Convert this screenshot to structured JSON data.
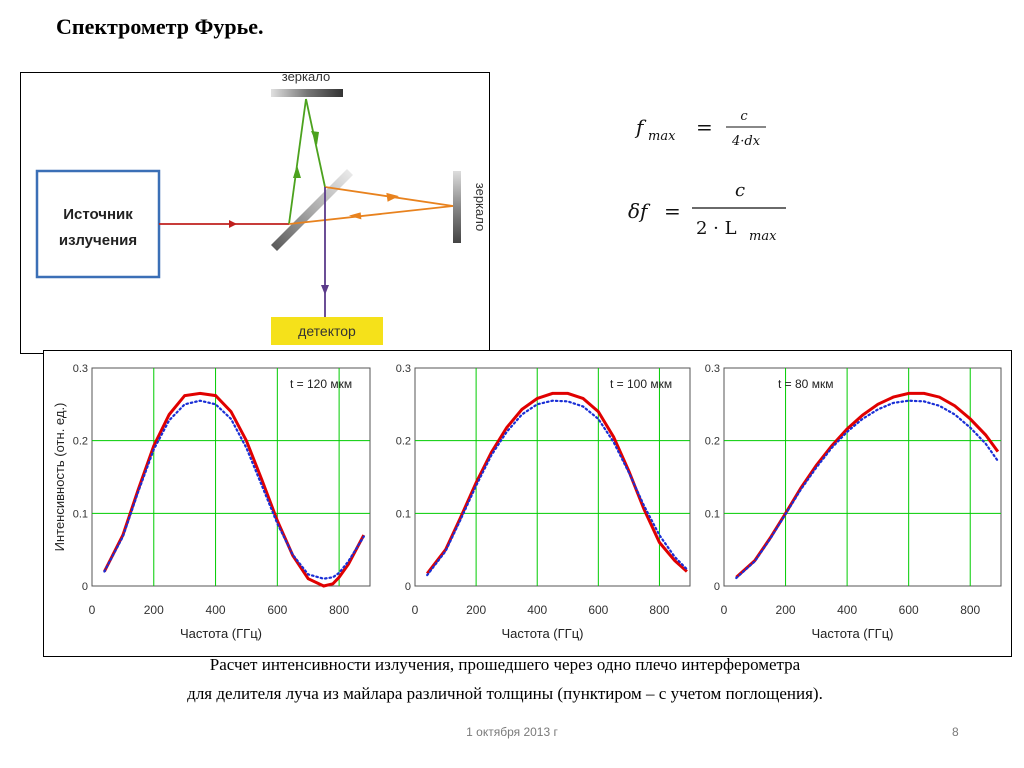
{
  "title": "Спектрометр Фурье.",
  "diagram": {
    "source_label_line1": "Источник",
    "source_label_line2": "излучения",
    "mirror_top_label": "зеркало",
    "mirror_right_label": "зеркало",
    "detector_label": "детектор"
  },
  "formulas": {
    "f_lhs": "f",
    "f_sub": "max",
    "f_num": "c",
    "f_den": "4·dx",
    "df_lhs": "δf",
    "df_num": "c",
    "df_den_prefix": "2 · L",
    "df_den_sub": "max",
    "eq": "="
  },
  "chart_data": [
    {
      "type": "line",
      "annotation": "t = 120 мкм",
      "xlabel": "Частота (ГГц)",
      "ylabel": "Интенсивность (отн. ед.)",
      "xlim": [
        0,
        900
      ],
      "ylim": [
        0,
        0.3
      ],
      "xticks": [
        "0",
        "200",
        "400",
        "600",
        "800"
      ],
      "yticks": [
        "0",
        "0.1",
        "0.2",
        "0.3"
      ],
      "grid": true,
      "series": [
        {
          "style": "solid",
          "color": "#e00000",
          "x": [
            40,
            100,
            150,
            200,
            250,
            300,
            350,
            400,
            450,
            500,
            550,
            600,
            650,
            700,
            750,
            780,
            800,
            830,
            880
          ],
          "y": [
            0.02,
            0.07,
            0.133,
            0.193,
            0.236,
            0.262,
            0.265,
            0.262,
            0.24,
            0.2,
            0.146,
            0.09,
            0.042,
            0.01,
            0.0,
            0.003,
            0.012,
            0.03,
            0.07
          ]
        },
        {
          "style": "dotted",
          "color": "#1a2fd6",
          "x": [
            40,
            100,
            150,
            200,
            250,
            300,
            350,
            400,
            450,
            500,
            550,
            600,
            650,
            700,
            750,
            780,
            800,
            830,
            880
          ],
          "y": [
            0.02,
            0.068,
            0.13,
            0.188,
            0.228,
            0.25,
            0.255,
            0.25,
            0.23,
            0.19,
            0.138,
            0.086,
            0.043,
            0.016,
            0.01,
            0.012,
            0.018,
            0.034,
            0.068
          ]
        }
      ]
    },
    {
      "type": "line",
      "annotation": "t = 100 мкм",
      "xlabel": "Частота (ГГц)",
      "ylabel": "",
      "xlim": [
        0,
        900
      ],
      "ylim": [
        0,
        0.3
      ],
      "xticks": [
        "0",
        "200",
        "400",
        "600",
        "800"
      ],
      "yticks": [
        "0",
        "0.1",
        "0.2",
        "0.3"
      ],
      "grid": true,
      "series": [
        {
          "style": "solid",
          "color": "#e00000",
          "x": [
            40,
            100,
            150,
            200,
            250,
            300,
            350,
            400,
            450,
            500,
            550,
            600,
            650,
            700,
            750,
            800,
            850,
            890
          ],
          "y": [
            0.017,
            0.05,
            0.095,
            0.142,
            0.184,
            0.218,
            0.243,
            0.258,
            0.265,
            0.265,
            0.258,
            0.24,
            0.205,
            0.158,
            0.105,
            0.06,
            0.035,
            0.02
          ]
        },
        {
          "style": "dotted",
          "color": "#1a2fd6",
          "x": [
            40,
            100,
            150,
            200,
            250,
            300,
            350,
            400,
            450,
            500,
            550,
            600,
            650,
            700,
            750,
            800,
            850,
            890
          ],
          "y": [
            0.015,
            0.048,
            0.092,
            0.138,
            0.18,
            0.212,
            0.236,
            0.25,
            0.255,
            0.254,
            0.247,
            0.23,
            0.198,
            0.156,
            0.11,
            0.07,
            0.04,
            0.023
          ]
        }
      ]
    },
    {
      "type": "line",
      "annotation": "t = 80 мкм",
      "xlabel": "Частота (ГГц)",
      "ylabel": "",
      "xlim": [
        0,
        900
      ],
      "ylim": [
        0,
        0.3
      ],
      "xticks": [
        "0",
        "200",
        "400",
        "600",
        "800"
      ],
      "yticks": [
        "0",
        "0.1",
        "0.2",
        "0.3"
      ],
      "grid": true,
      "series": [
        {
          "style": "solid",
          "color": "#e00000",
          "x": [
            40,
            100,
            150,
            200,
            250,
            300,
            350,
            400,
            450,
            500,
            550,
            600,
            650,
            700,
            750,
            800,
            850,
            890
          ],
          "y": [
            0.012,
            0.035,
            0.066,
            0.1,
            0.135,
            0.166,
            0.193,
            0.216,
            0.235,
            0.25,
            0.26,
            0.265,
            0.265,
            0.26,
            0.248,
            0.23,
            0.208,
            0.185
          ]
        },
        {
          "style": "dotted",
          "color": "#1a2fd6",
          "x": [
            40,
            100,
            150,
            200,
            250,
            300,
            350,
            400,
            450,
            500,
            550,
            600,
            650,
            700,
            750,
            800,
            850,
            890
          ],
          "y": [
            0.011,
            0.034,
            0.065,
            0.099,
            0.133,
            0.163,
            0.19,
            0.212,
            0.23,
            0.243,
            0.252,
            0.255,
            0.254,
            0.248,
            0.236,
            0.218,
            0.196,
            0.172
          ]
        }
      ]
    }
  ],
  "caption_line1": "Расчет интенсивности излучения, прошедшего через одно плечо интерферометра",
  "caption_line2": "для делителя луча из майлара различной толщины (пунктиром – с учетом поглощения).",
  "footer_date": "1 октября 2013 г",
  "page_number": "8",
  "colors": {
    "solid_curve": "#e00000",
    "dotted_curve": "#1a2fd6",
    "grid": "#00cc00",
    "source_box": "#3b6fb6",
    "detector_fill": "#f5e11a",
    "beam_red": "#c0201e",
    "beam_green": "#4ca21e",
    "beam_orange": "#e8821e",
    "beam_purple": "#5b3b8a"
  }
}
